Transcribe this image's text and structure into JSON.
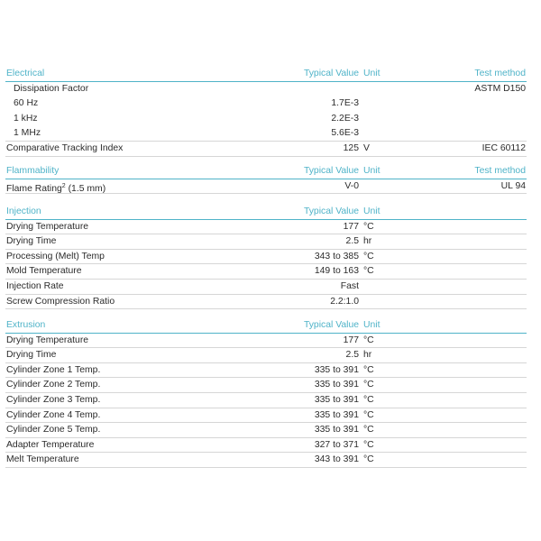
{
  "sections": [
    {
      "title": "Electrical",
      "col_value": "Typical Value",
      "col_unit": "Unit",
      "col_method": "Test method",
      "rows": [
        {
          "name": "Dissipation Factor",
          "value": "",
          "unit": "",
          "method": "ASTM D150",
          "sub": false,
          "nosep": true
        },
        {
          "name": "60 Hz",
          "value": "1.7E-3",
          "unit": "",
          "method": "",
          "sub": true
        },
        {
          "name": "1 kHz",
          "value": "2.2E-3",
          "unit": "",
          "method": "",
          "sub": true
        },
        {
          "name": "1 MHz",
          "value": "5.6E-3",
          "unit": "",
          "method": "",
          "sub": true,
          "last": true
        },
        {
          "name": "Comparative Tracking Index",
          "value": "125",
          "unit": "V",
          "method": "IEC 60112"
        }
      ]
    },
    {
      "title": "Flammability",
      "col_value": "Typical Value",
      "col_unit": "Unit",
      "col_method": "Test method",
      "rows": [
        {
          "name": "Flame Rating",
          "sup": "2",
          "name_suffix": " (1.5 mm)",
          "value": "V-0",
          "unit": "",
          "method": "UL 94"
        }
      ]
    },
    {
      "title": "Injection",
      "col_value": "Typical Value",
      "col_unit": "Unit",
      "col_method": "",
      "rows": [
        {
          "name": "Drying Temperature",
          "value": "177",
          "unit": "°C",
          "method": ""
        },
        {
          "name": "Drying Time",
          "value": "2.5",
          "unit": "hr",
          "method": ""
        },
        {
          "name": "Processing (Melt) Temp",
          "value": "343 to 385",
          "unit": "°C",
          "method": ""
        },
        {
          "name": "Mold Temperature",
          "value": "149 to 163",
          "unit": "°C",
          "method": ""
        },
        {
          "name": "Injection Rate",
          "value": "Fast",
          "unit": "",
          "method": ""
        },
        {
          "name": "Screw Compression Ratio",
          "value": "2.2:1.0",
          "unit": "",
          "method": ""
        }
      ]
    },
    {
      "title": "Extrusion",
      "col_value": "Typical Value",
      "col_unit": "Unit",
      "col_method": "",
      "rows": [
        {
          "name": "Drying Temperature",
          "value": "177",
          "unit": "°C",
          "method": ""
        },
        {
          "name": "Drying Time",
          "value": "2.5",
          "unit": "hr",
          "method": ""
        },
        {
          "name": "Cylinder Zone 1 Temp.",
          "value": "335 to 391",
          "unit": "°C",
          "method": ""
        },
        {
          "name": "Cylinder Zone 2 Temp.",
          "value": "335 to 391",
          "unit": "°C",
          "method": ""
        },
        {
          "name": "Cylinder Zone 3 Temp.",
          "value": "335 to 391",
          "unit": "°C",
          "method": ""
        },
        {
          "name": "Cylinder Zone 4 Temp.",
          "value": "335 to 391",
          "unit": "°C",
          "method": ""
        },
        {
          "name": "Cylinder Zone 5 Temp.",
          "value": "335 to 391",
          "unit": "°C",
          "method": ""
        },
        {
          "name": "Adapter Temperature",
          "value": "327 to 371",
          "unit": "°C",
          "method": ""
        },
        {
          "name": "Melt Temperature",
          "value": "343 to 391",
          "unit": "°C",
          "method": ""
        }
      ]
    }
  ],
  "colors": {
    "header": "#4fb3c8",
    "text": "#2b2b2b",
    "rule": "#d6d6d6"
  }
}
